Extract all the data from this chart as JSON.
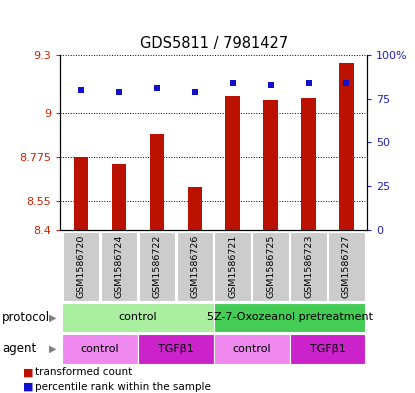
{
  "title": "GDS5811 / 7981427",
  "samples": [
    "GSM1586720",
    "GSM1586724",
    "GSM1586722",
    "GSM1586726",
    "GSM1586721",
    "GSM1586725",
    "GSM1586723",
    "GSM1586727"
  ],
  "bar_values": [
    8.775,
    8.74,
    8.895,
    8.62,
    9.09,
    9.07,
    9.08,
    9.26
  ],
  "dot_values": [
    80,
    79,
    81,
    79,
    84,
    83,
    84,
    84
  ],
  "ylim_left": [
    8.4,
    9.3
  ],
  "ylim_right": [
    0,
    100
  ],
  "yticks_left": [
    8.4,
    8.55,
    8.775,
    9.0,
    9.3
  ],
  "yticks_right": [
    0,
    25,
    50,
    75,
    100
  ],
  "ytick_labels_left": [
    "8.4",
    "8.55",
    "8.775",
    "9",
    "9.3"
  ],
  "ytick_labels_right": [
    "0",
    "25",
    "50",
    "75",
    "100%"
  ],
  "bar_color": "#bb1100",
  "dot_color": "#1111cc",
  "bar_bottom": 8.4,
  "protocol_groups": [
    {
      "label": "control",
      "start": 0,
      "end": 4,
      "color": "#aaeea0"
    },
    {
      "label": "5Z-7-Oxozeanol pretreatment",
      "start": 4,
      "end": 8,
      "color": "#44cc55"
    }
  ],
  "agent_groups": [
    {
      "label": "control",
      "start": 0,
      "end": 2,
      "color": "#ee88ee"
    },
    {
      "label": "TGFβ1",
      "start": 2,
      "end": 4,
      "color": "#cc22cc"
    },
    {
      "label": "control",
      "start": 4,
      "end": 6,
      "color": "#ee88ee"
    },
    {
      "label": "TGFβ1",
      "start": 6,
      "end": 8,
      "color": "#cc22cc"
    }
  ],
  "legend_items": [
    {
      "label": "transformed count",
      "color": "#bb1100"
    },
    {
      "label": "percentile rank within the sample",
      "color": "#1111cc"
    }
  ],
  "protocol_label": "protocol",
  "agent_label": "agent"
}
